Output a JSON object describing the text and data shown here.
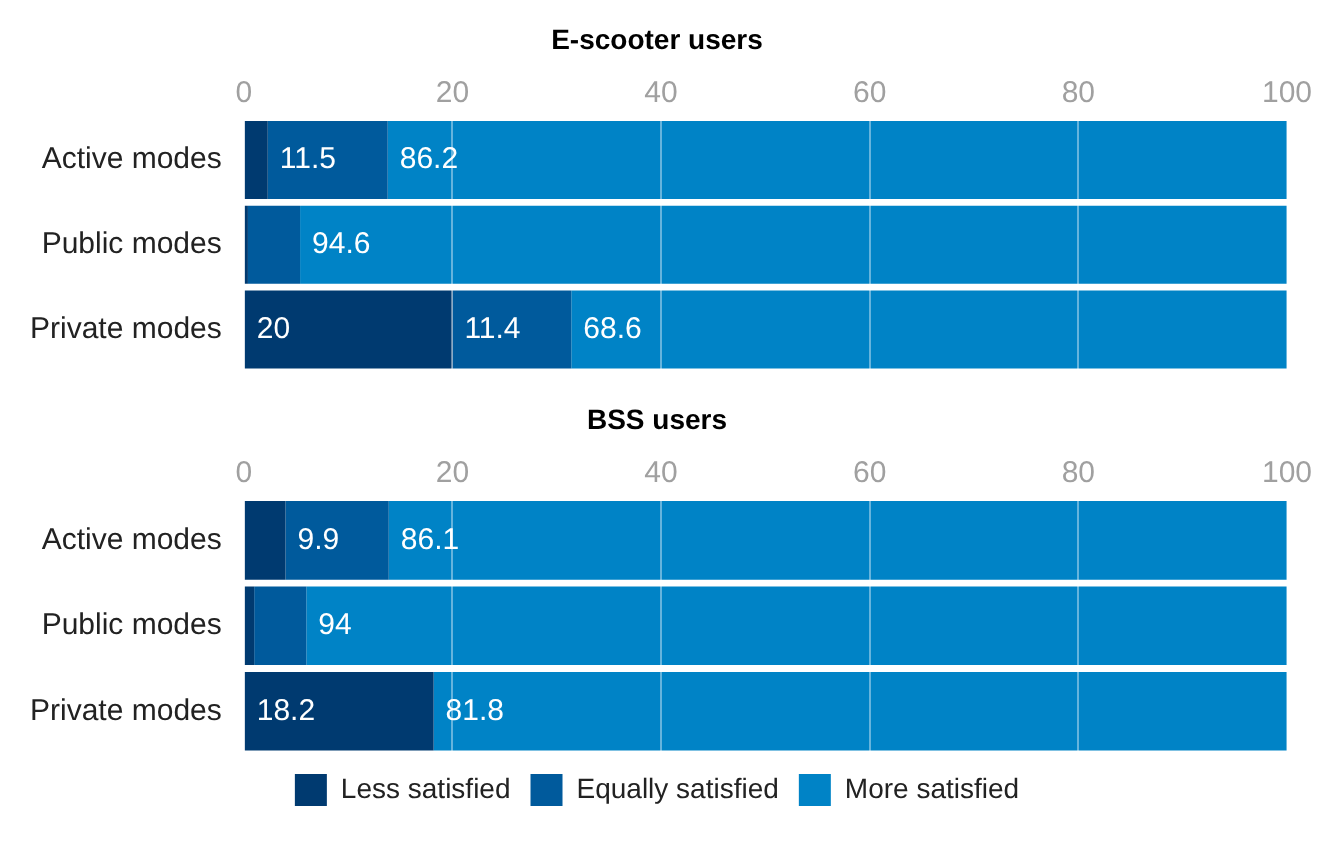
{
  "chart_data": [
    {
      "type": "bar",
      "title": "E-scooter users",
      "orientation": "horizontal",
      "stacked": true,
      "categories": [
        "Active modes",
        "Public modes",
        "Private modes"
      ],
      "series": [
        {
          "color": "#003a70",
          "values": [
            2.3,
            0.4,
            20
          ],
          "value_labels": [
            null,
            null,
            "20"
          ]
        },
        {
          "color": "#005a9c",
          "values": [
            11.5,
            5.0,
            11.4
          ],
          "value_labels": [
            "11.5",
            null,
            "11.4"
          ]
        },
        {
          "color": "#0083c6",
          "values": [
            86.2,
            94.6,
            68.6
          ],
          "value_labels": [
            "86.2",
            "94.6",
            "68.6"
          ]
        }
      ],
      "xlim": [
        0,
        100
      ],
      "xticks": [
        0,
        20,
        40,
        60,
        80,
        100
      ],
      "grid": "x"
    },
    {
      "type": "bar",
      "title": "BSS users",
      "orientation": "horizontal",
      "stacked": true,
      "categories": [
        "Active modes",
        "Public modes",
        "Private modes"
      ],
      "series": [
        {
          "name": "Less satisfied",
          "color": "#003a70",
          "values": [
            4.0,
            1.0,
            18.2
          ],
          "value_labels": [
            null,
            null,
            "18.2"
          ]
        },
        {
          "name": "Equally satisfied",
          "color": "#005a9c",
          "values": [
            9.9,
            5.0,
            0
          ],
          "value_labels": [
            "9.9",
            null,
            null
          ]
        },
        {
          "name": "More satisfied",
          "color": "#0083c6",
          "values": [
            86.1,
            94,
            81.8
          ],
          "value_labels": [
            "86.1",
            "94",
            "81.8"
          ]
        }
      ],
      "xlim": [
        0,
        100
      ],
      "xticks": [
        0,
        20,
        40,
        60,
        80,
        100
      ],
      "grid": "x",
      "legend": "bottom"
    }
  ]
}
